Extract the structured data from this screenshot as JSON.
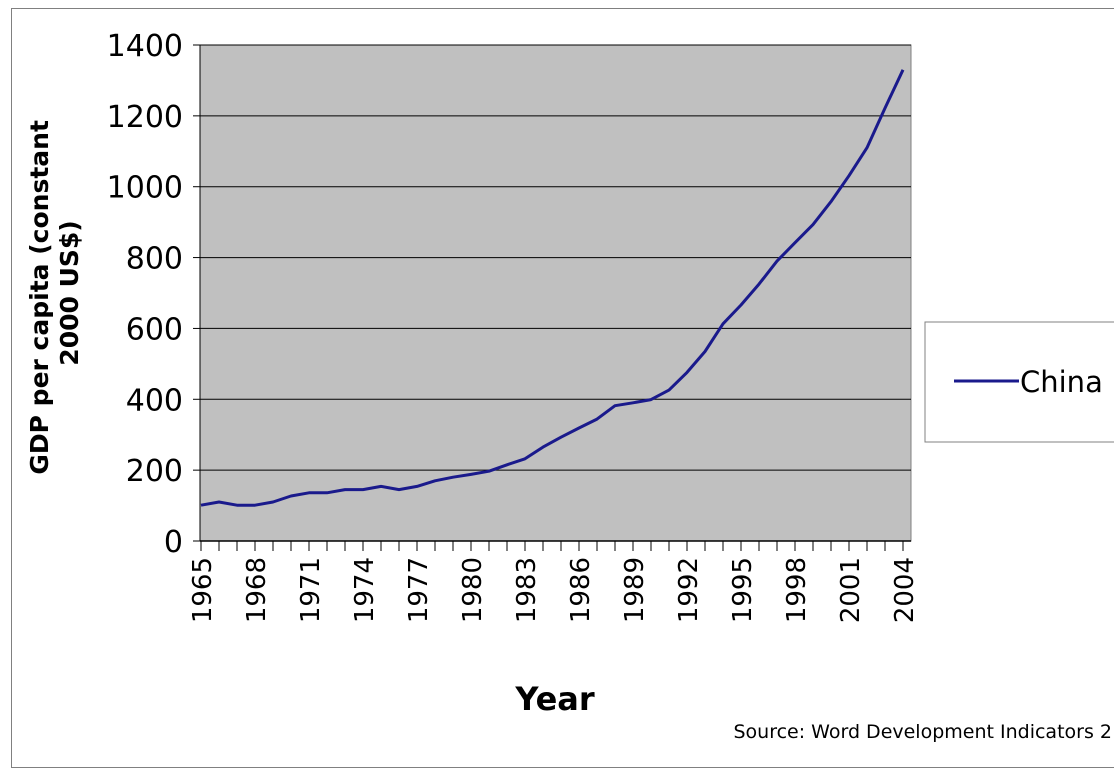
{
  "chart_data": {
    "type": "line",
    "x": [
      1965,
      1966,
      1967,
      1968,
      1969,
      1970,
      1971,
      1972,
      1973,
      1974,
      1975,
      1976,
      1977,
      1978,
      1979,
      1980,
      1981,
      1982,
      1983,
      1984,
      1985,
      1986,
      1987,
      1988,
      1989,
      1990,
      1991,
      1992,
      1993,
      1994,
      1995,
      1996,
      1997,
      1998,
      1999,
      2000,
      2001,
      2002,
      2003,
      2004
    ],
    "series": [
      {
        "name": "China",
        "color": "#1a1a8c",
        "values": [
          101,
          110,
          101,
          101,
          110,
          127,
          136,
          136,
          145,
          145,
          154,
          145,
          154,
          170,
          180,
          188,
          197,
          215,
          232,
          265,
          293,
          319,
          344,
          382,
          390,
          399,
          426,
          476,
          535,
          613,
          666,
          725,
          790,
          842,
          893,
          958,
          1031,
          1110,
          1222,
          1330
        ]
      }
    ],
    "title": "",
    "xlabel": "Year",
    "ylabel": "GDP per capita (constant 2000 US$)",
    "ylabel_lines": [
      "GDP per capita (constant",
      "2000 US$)"
    ],
    "ylim": [
      0,
      1400
    ],
    "yticks": [
      0,
      200,
      400,
      600,
      800,
      1000,
      1200,
      1400
    ],
    "xtick_labels": [
      "1965",
      "1968",
      "1971",
      "1974",
      "1977",
      "1980",
      "1983",
      "1986",
      "1989",
      "1992",
      "1995",
      "1998",
      "2001",
      "2004"
    ],
    "grid": true,
    "plot_background": "#c0c0c0",
    "legend": {
      "placement": "right",
      "entries": [
        "China"
      ]
    },
    "source_note": "Source: Word Development Indicators 2"
  }
}
